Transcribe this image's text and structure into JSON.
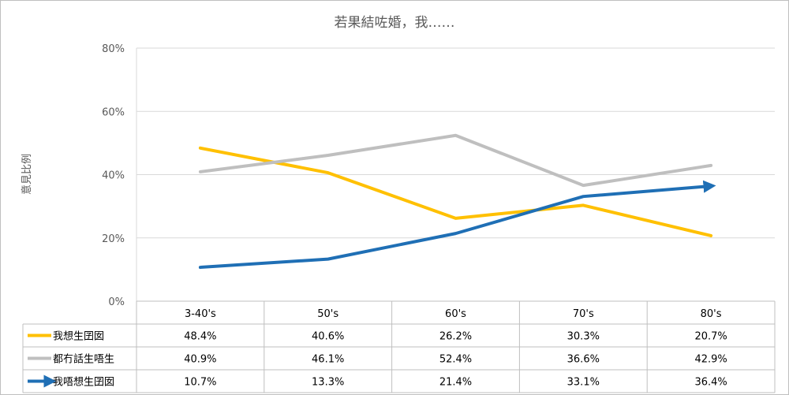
{
  "chart_data": {
    "type": "line",
    "title": "若果結咗婚，我……",
    "ylabel": "意見比例",
    "xlabel": "",
    "categories": [
      "3-40's",
      "50's",
      "60's",
      "70's",
      "80's"
    ],
    "y_ticks": [
      "0%",
      "20%",
      "40%",
      "60%",
      "80%"
    ],
    "ylim": [
      0,
      80
    ],
    "grid": true,
    "legend": "data-table",
    "series": [
      {
        "name": "我想生囝囡",
        "color": "#FFC000",
        "values": [
          48.4,
          40.6,
          26.2,
          30.3,
          20.7
        ],
        "labels": [
          "48.4%",
          "40.6%",
          "26.2%",
          "30.3%",
          "20.7%"
        ],
        "arrow": false
      },
      {
        "name": "都冇話生唔生",
        "color": "#BFBFBF",
        "values": [
          40.9,
          46.1,
          52.4,
          36.6,
          42.9
        ],
        "labels": [
          "40.9%",
          "46.1%",
          "52.4%",
          "36.6%",
          "42.9%"
        ],
        "arrow": false
      },
      {
        "name": "我唔想生囝囡",
        "color": "#1F6FB5",
        "values": [
          10.7,
          13.3,
          21.4,
          33.1,
          36.4
        ],
        "labels": [
          "10.7%",
          "13.3%",
          "21.4%",
          "33.1%",
          "36.4%"
        ],
        "arrow": true
      }
    ]
  }
}
